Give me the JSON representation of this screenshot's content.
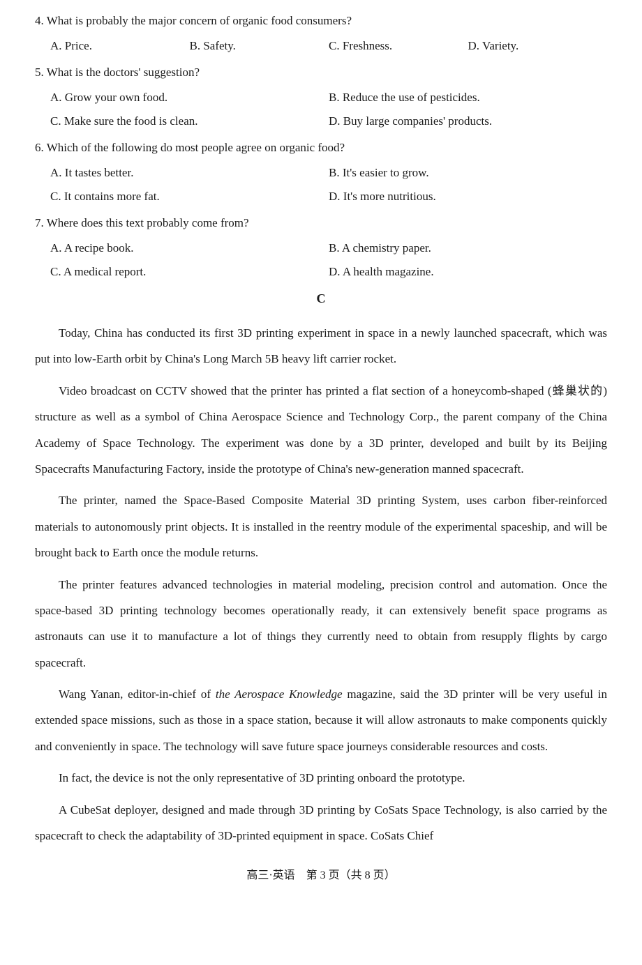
{
  "questions": [
    {
      "num": "4.",
      "text": "What is probably the major concern of organic food consumers?",
      "layout": "four",
      "options": [
        "A. Price.",
        "B. Safety.",
        "C. Freshness.",
        "D. Variety."
      ]
    },
    {
      "num": "5.",
      "text": "What is the doctors' suggestion?",
      "layout": "two",
      "options": [
        "A. Grow your own food.",
        "B. Reduce the use of pesticides.",
        "C. Make sure the food is clean.",
        "D. Buy large companies' products."
      ]
    },
    {
      "num": "6.",
      "text": "Which of the following do most people agree on organic food?",
      "layout": "two",
      "options": [
        "A. It tastes better.",
        "B. It's easier to grow.",
        "C. It contains more fat.",
        "D. It's more nutritious."
      ]
    },
    {
      "num": "7.",
      "text": "Where does this text probably come from?",
      "layout": "two",
      "options": [
        "A. A recipe book.",
        "B. A chemistry paper.",
        "C. A medical report.",
        "D. A health magazine."
      ]
    }
  ],
  "section_label": "C",
  "passage": {
    "p1": "Today, China has conducted its first 3D printing experiment in space in a newly launched spacecraft, which was put into low-Earth orbit by China's Long March 5B heavy lift carrier rocket.",
    "p2": "Video broadcast on CCTV showed that the printer has printed a flat section of a honeycomb-shaped (蜂巢状的) structure as well as a symbol of China Aerospace Science and Technology Corp., the parent company of the China Academy of Space Technology. The experiment was done by a 3D printer, developed and built by its Beijing Spacecrafts Manufacturing Factory, inside the prototype of China's new-generation manned spacecraft.",
    "p3": "The printer, named the Space-Based Composite Material 3D printing System, uses carbon fiber-reinforced materials to autonomously print objects. It is installed in the reentry module of the experimental spaceship, and will be brought back to Earth once the module returns.",
    "p4": "The printer features advanced technologies in material modeling, precision control and automation. Once the space-based 3D printing technology becomes operationally ready, it can extensively benefit space programs as astronauts can use it to manufacture a lot of things they currently need to obtain from resupply flights by cargo spacecraft.",
    "p5_a": "Wang Yanan, editor-in-chief of ",
    "p5_i": "the Aerospace Knowledge",
    "p5_b": " magazine, said the 3D printer will be very useful in extended space missions, such as those in a space station, because it will allow astronauts to make components quickly and conveniently in space. The technology will save future space journeys considerable resources and costs.",
    "p6": "In fact, the device is not the only representative of 3D printing onboard the prototype.",
    "p7": "A CubeSat deployer, designed and made through 3D printing by CoSats Space Technology, is also carried by the spacecraft to check the adaptability of 3D-printed equipment in space. CoSats Chief"
  },
  "footer": "高三·英语　第 3 页（共 8 页）"
}
